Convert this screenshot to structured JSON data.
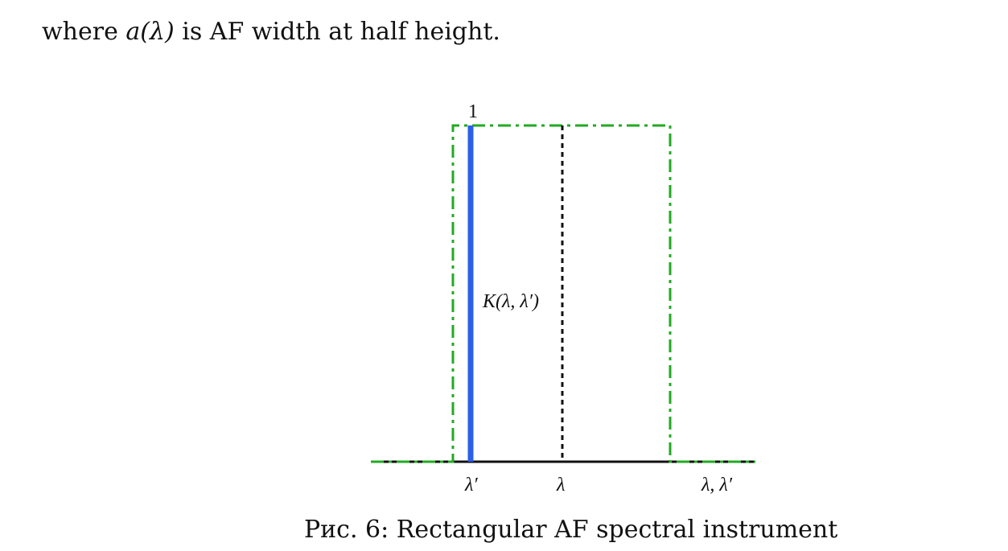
{
  "text": {
    "intro_prefix": "where",
    "intro_math": "a(λ)",
    "intro_suffix": "is AF width at half height."
  },
  "figure": {
    "peak_label": "1",
    "curve_label": "K(λ, λ′)",
    "x_labels": {
      "lambda_prime": "λ′",
      "lambda": "λ",
      "axis": "λ, λ′"
    },
    "colors": {
      "rectangle": "#22aa22",
      "instrument_line": "#2b5fe8",
      "axis": "#111111",
      "center_line": "#111111"
    }
  },
  "caption": {
    "prefix": "Рис. 6:",
    "text": "Rectangular AF spectral instrument"
  }
}
